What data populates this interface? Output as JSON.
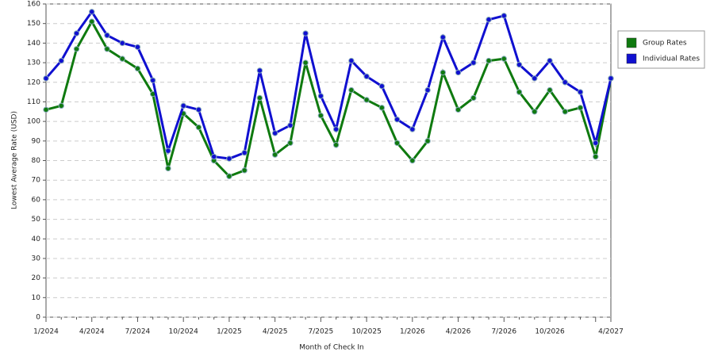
{
  "chart_data": {
    "type": "line",
    "x_label": "Month of Check In",
    "y_label": "Lowest Average Rate (USD)",
    "categories": [
      "1/2024",
      null,
      null,
      "4/2024",
      null,
      null,
      "7/2024",
      null,
      null,
      "10/2024",
      null,
      null,
      "1/2025",
      null,
      null,
      "4/2025",
      null,
      null,
      "7/2025",
      null,
      null,
      "10/2025",
      null,
      null,
      "1/2026",
      null,
      null,
      "4/2026",
      null,
      null,
      "7/2026",
      null,
      null,
      "10/2026",
      null,
      null,
      null,
      "4/2027"
    ],
    "series": [
      {
        "name": "Group Rates",
        "color": "#0f7a0f",
        "values": [
          106,
          108,
          137,
          151,
          137,
          132,
          127,
          114,
          76,
          104,
          97,
          80,
          72,
          75,
          112,
          83,
          89,
          130,
          103,
          88,
          116,
          111,
          107,
          89,
          80,
          90,
          125,
          106,
          112,
          131,
          132,
          115,
          105,
          116,
          105,
          107,
          82,
          122
        ]
      },
      {
        "name": "Individual Rates",
        "color": "#1010d0",
        "values": [
          122,
          131,
          145,
          156,
          144,
          140,
          138,
          121,
          85,
          108,
          106,
          82,
          81,
          84,
          126,
          94,
          98,
          145,
          113,
          96,
          131,
          123,
          118,
          101,
          96,
          116,
          143,
          125,
          130,
          152,
          154,
          129,
          122,
          131,
          120,
          115,
          89,
          122
        ]
      }
    ],
    "ylim": [
      0,
      160
    ],
    "yticks": [
      0,
      10,
      20,
      30,
      40,
      50,
      60,
      70,
      80,
      90,
      100,
      110,
      120,
      130,
      140,
      150,
      160
    ],
    "grid": true
  }
}
